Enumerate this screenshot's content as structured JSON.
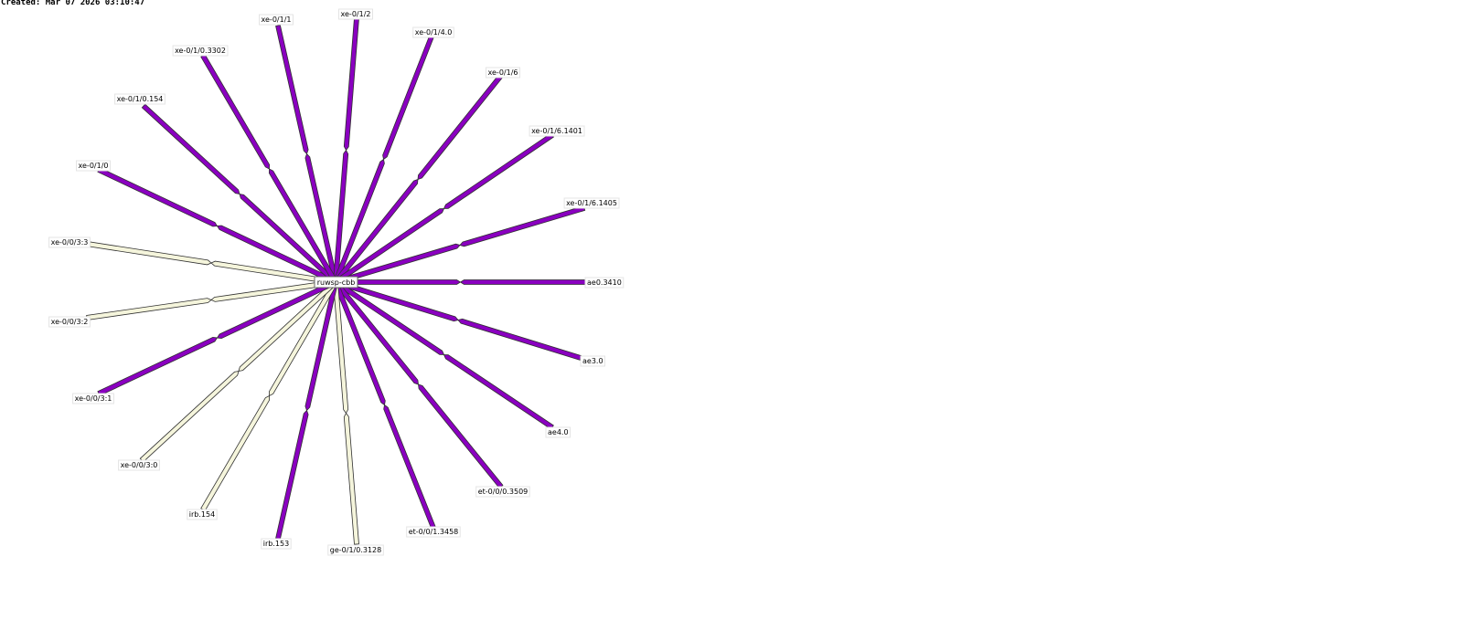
{
  "created": "Created: Mar 07 2026 03:10:47",
  "colors": {
    "active": "#8a00c0",
    "inactive": "#f5f5dc",
    "outline": "#303030"
  },
  "center": {
    "name": "ruwsp-cbb"
  },
  "links": [
    {
      "label": "xe-0/1/1",
      "status": "active"
    },
    {
      "label": "xe-0/1/2",
      "status": "active"
    },
    {
      "label": "xe-0/1/4.0",
      "status": "active"
    },
    {
      "label": "xe-0/1/6",
      "status": "active"
    },
    {
      "label": "xe-0/1/6.1401",
      "status": "active"
    },
    {
      "label": "xe-0/1/6.1405",
      "status": "active"
    },
    {
      "label": "ae0.3410",
      "status": "active"
    },
    {
      "label": "ae3.0",
      "status": "active"
    },
    {
      "label": "ae4.0",
      "status": "active"
    },
    {
      "label": "et-0/0/0.3509",
      "status": "active"
    },
    {
      "label": "et-0/0/1.3458",
      "status": "active"
    },
    {
      "label": "ge-0/1/0.3128",
      "status": "inactive"
    },
    {
      "label": "irb.153",
      "status": "active"
    },
    {
      "label": "irb.154",
      "status": "inactive"
    },
    {
      "label": "xe-0/0/3:0",
      "status": "inactive"
    },
    {
      "label": "xe-0/0/3:1",
      "status": "active"
    },
    {
      "label": "xe-0/0/3:2",
      "status": "inactive"
    },
    {
      "label": "xe-0/0/3:3",
      "status": "inactive"
    },
    {
      "label": "xe-0/1/0",
      "status": "active"
    },
    {
      "label": "xe-0/1/0.154",
      "status": "active"
    },
    {
      "label": "xe-0/1/0.3302",
      "status": "active"
    }
  ]
}
